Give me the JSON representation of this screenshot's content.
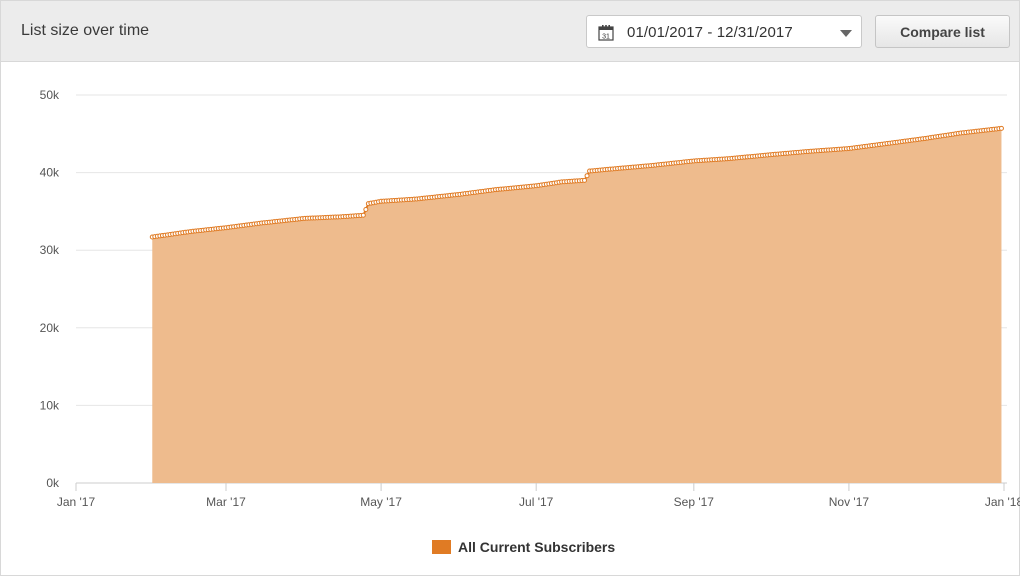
{
  "header": {
    "title": "List size over time",
    "date_range": "01/01/2017 - 12/31/2017",
    "calendar_day": "31",
    "compare_label": "Compare list"
  },
  "chart_data": {
    "type": "area",
    "title": "",
    "xlabel": "",
    "ylabel": "",
    "y_ticks": [
      "0k",
      "10k",
      "20k",
      "30k",
      "40k",
      "50k"
    ],
    "y_tick_values": [
      0,
      10000,
      20000,
      30000,
      40000,
      50000
    ],
    "ylim": [
      0,
      50000
    ],
    "x_ticks": [
      "Jan '17",
      "Mar '17",
      "May '17",
      "Jul '17",
      "Sep '17",
      "Nov '17",
      "Jan '18"
    ],
    "x_tick_dates": [
      "2017-01-01",
      "2017-03-01",
      "2017-05-01",
      "2017-07-01",
      "2017-09-01",
      "2017-11-01",
      "2018-01-01"
    ],
    "xlim": [
      "2017-01-01",
      "2018-01-01"
    ],
    "grid": "horizontal",
    "legend_position": "bottom-center",
    "series": [
      {
        "name": "All Current Subscribers",
        "color": "#e07b24",
        "fill": "#eebb8d",
        "points": [
          {
            "x": "2017-01-31",
            "y": 31700
          },
          {
            "x": "2017-02-15",
            "y": 32400
          },
          {
            "x": "2017-03-01",
            "y": 32900
          },
          {
            "x": "2017-03-15",
            "y": 33500
          },
          {
            "x": "2017-04-01",
            "y": 34100
          },
          {
            "x": "2017-04-15",
            "y": 34300
          },
          {
            "x": "2017-04-24",
            "y": 34500
          },
          {
            "x": "2017-04-26",
            "y": 36000
          },
          {
            "x": "2017-05-01",
            "y": 36300
          },
          {
            "x": "2017-05-15",
            "y": 36600
          },
          {
            "x": "2017-06-01",
            "y": 37200
          },
          {
            "x": "2017-06-15",
            "y": 37800
          },
          {
            "x": "2017-07-01",
            "y": 38300
          },
          {
            "x": "2017-07-11",
            "y": 38800
          },
          {
            "x": "2017-07-20",
            "y": 39000
          },
          {
            "x": "2017-07-22",
            "y": 40200
          },
          {
            "x": "2017-08-01",
            "y": 40500
          },
          {
            "x": "2017-08-15",
            "y": 40900
          },
          {
            "x": "2017-09-01",
            "y": 41500
          },
          {
            "x": "2017-09-15",
            "y": 41800
          },
          {
            "x": "2017-10-01",
            "y": 42300
          },
          {
            "x": "2017-10-15",
            "y": 42700
          },
          {
            "x": "2017-11-01",
            "y": 43100
          },
          {
            "x": "2017-11-15",
            "y": 43700
          },
          {
            "x": "2017-12-01",
            "y": 44400
          },
          {
            "x": "2017-12-15",
            "y": 45100
          },
          {
            "x": "2017-12-31",
            "y": 45700
          }
        ]
      }
    ]
  }
}
